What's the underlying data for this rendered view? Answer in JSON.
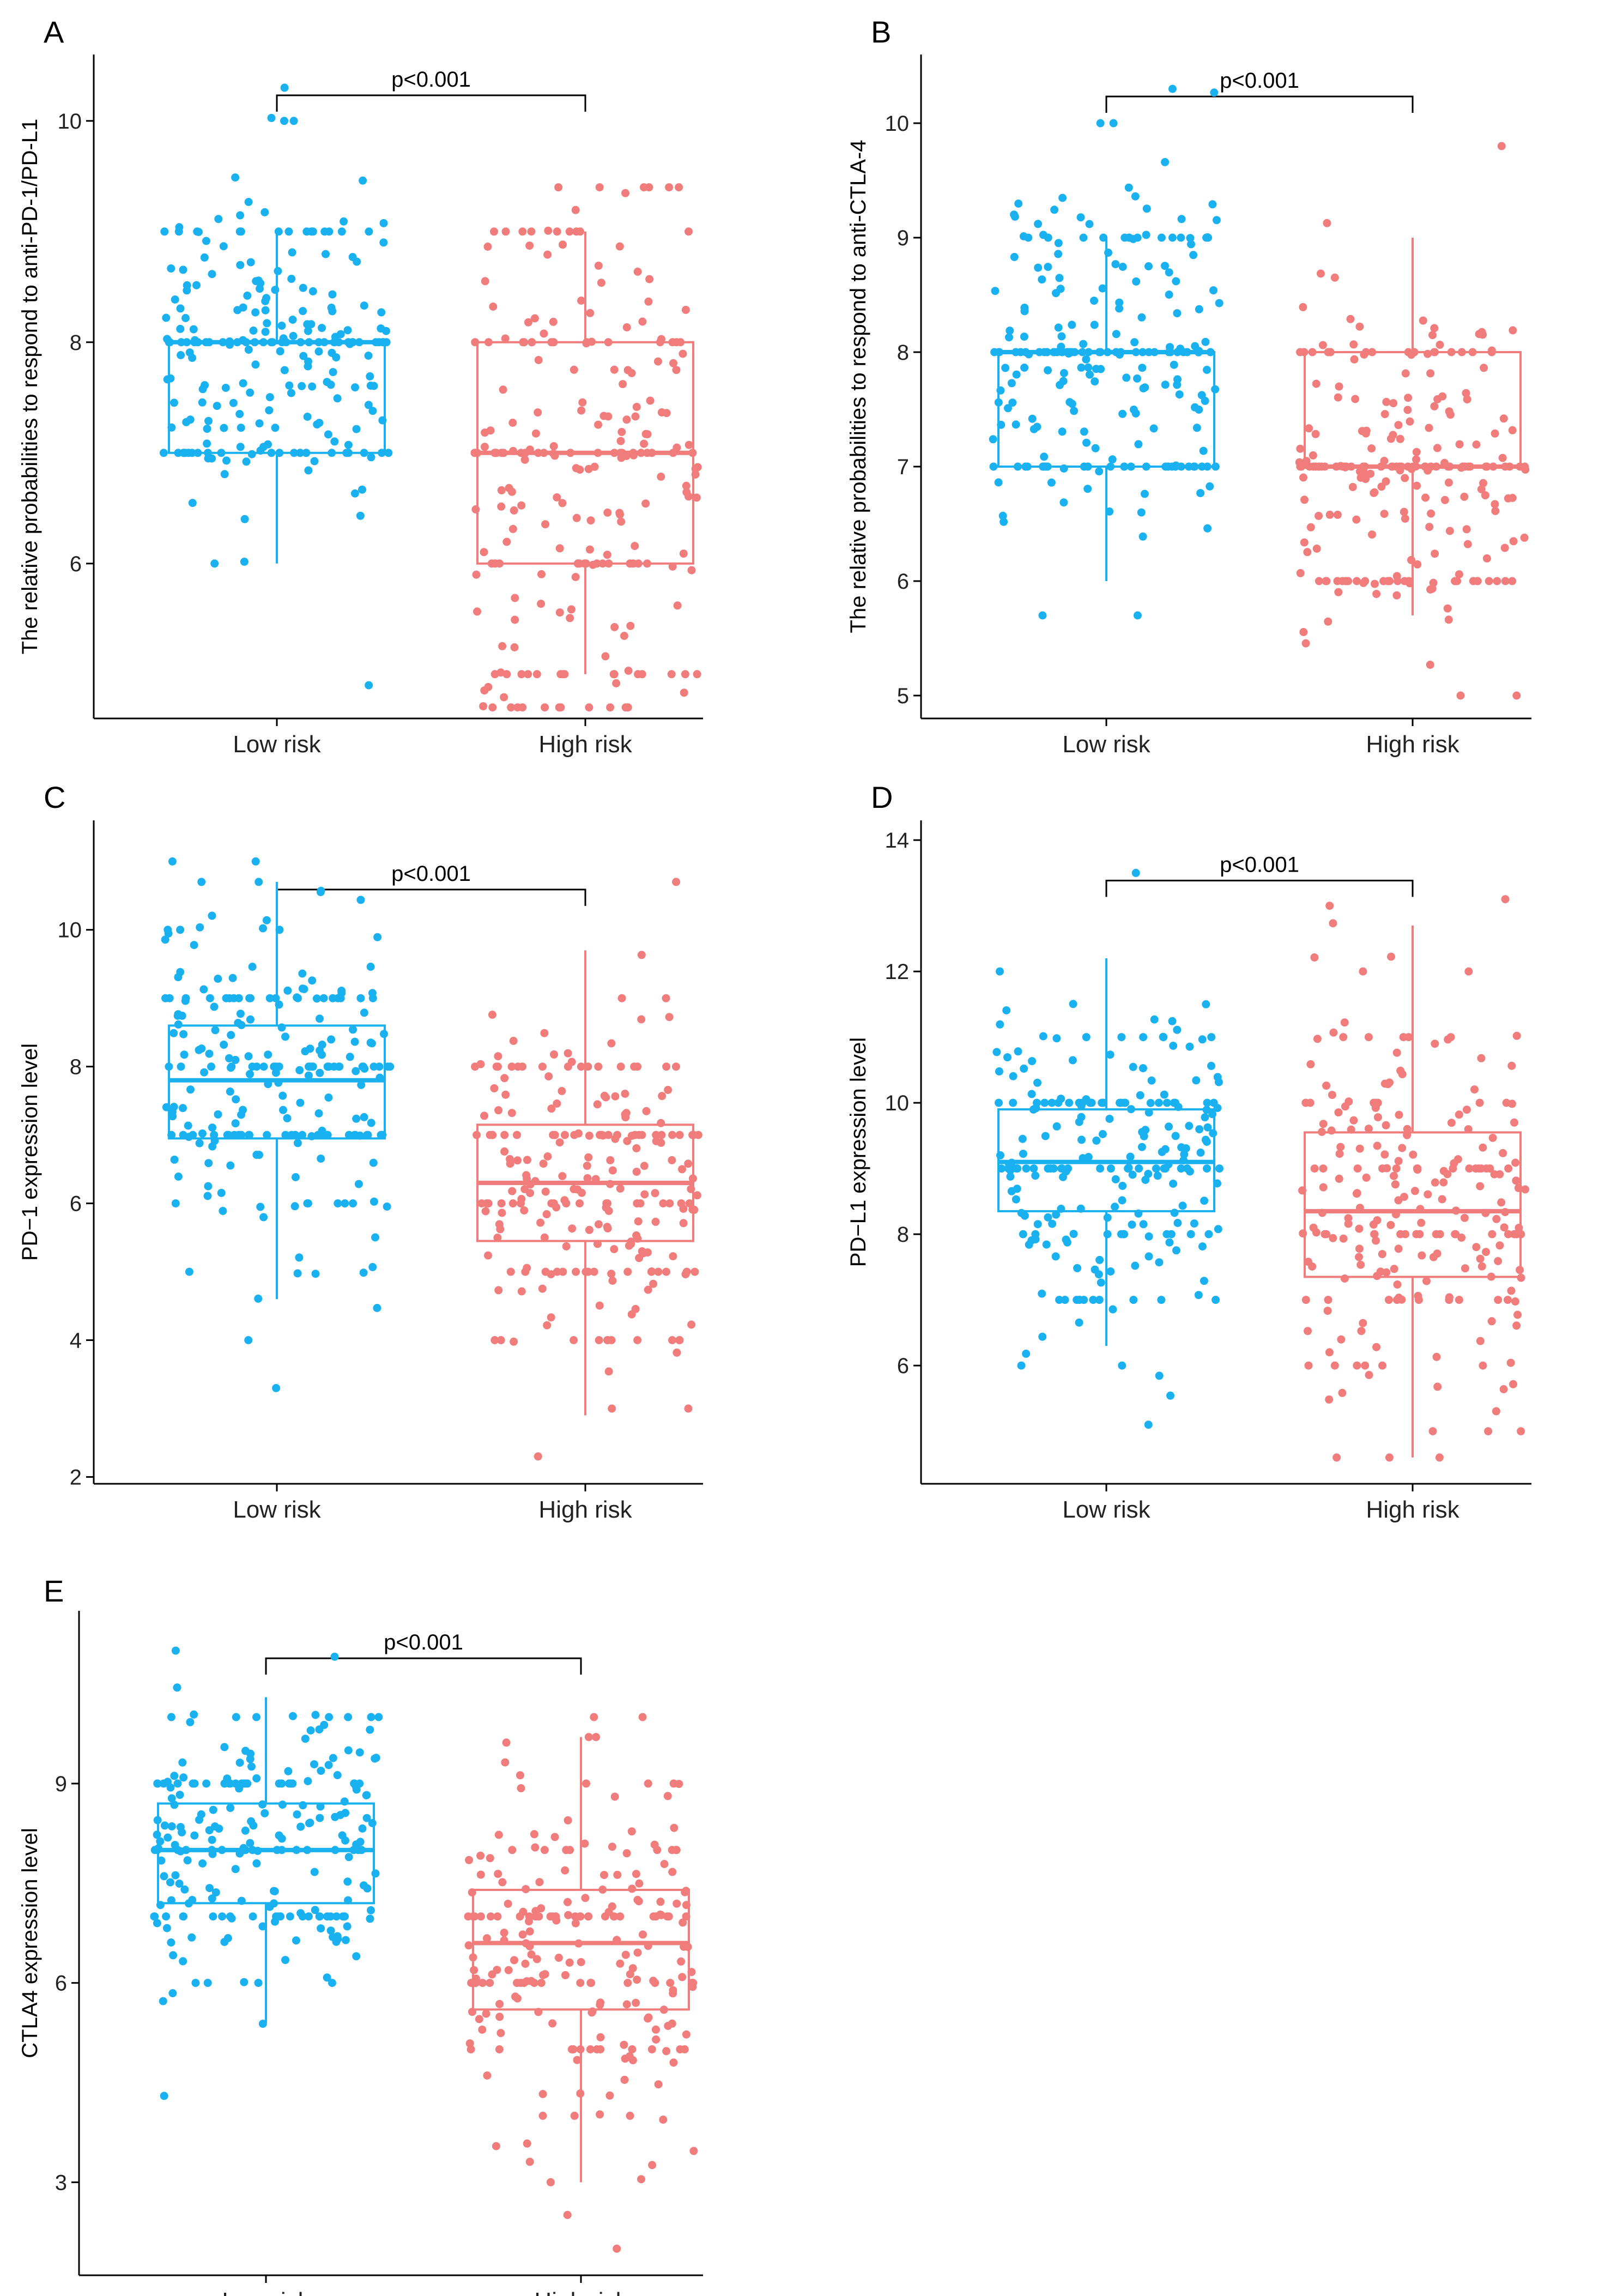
{
  "colors": {
    "low": "#1AB1F0",
    "high": "#F07C7B",
    "axis": "#000000"
  },
  "chart_data": [
    {
      "type": "box",
      "panel": "A",
      "ylabel": "The relative probabilities to respond to anti-PD-1/PD-L1",
      "categories": [
        "Low risk",
        "High risk"
      ],
      "ylim": [
        4.6,
        10.6
      ],
      "yticks": [
        6,
        8,
        10
      ],
      "pvalue": "p<0.001",
      "series": [
        {
          "name": "Low risk",
          "box": {
            "whisker_low": 6.0,
            "q1": 7.0,
            "median": 8.0,
            "q3": 8.0,
            "whisker_high": 9.0
          },
          "point_range": [
            4.9,
            10.3
          ],
          "n_points": 230
        },
        {
          "name": "High risk",
          "box": {
            "whisker_low": 5.0,
            "q1": 6.0,
            "median": 7.0,
            "q3": 8.0,
            "whisker_high": 9.0
          },
          "point_range": [
            4.7,
            9.4
          ],
          "n_points": 230
        }
      ]
    },
    {
      "type": "box",
      "panel": "B",
      "ylabel": "The relative probabilities to respond to anti-CTLA-4",
      "categories": [
        "Low risk",
        "High risk"
      ],
      "ylim": [
        4.8,
        10.6
      ],
      "yticks": [
        5,
        6,
        7,
        8,
        9,
        10
      ],
      "pvalue": "p<0.001",
      "series": [
        {
          "name": "Low risk",
          "box": {
            "whisker_low": 6.0,
            "q1": 7.0,
            "median": 8.0,
            "q3": 8.0,
            "whisker_high": 9.0
          },
          "point_range": [
            5.7,
            10.3
          ],
          "n_points": 230
        },
        {
          "name": "High risk",
          "box": {
            "whisker_low": 5.7,
            "q1": 7.0,
            "median": 7.0,
            "q3": 8.0,
            "whisker_high": 9.0
          },
          "point_range": [
            5.0,
            9.8
          ],
          "n_points": 230
        }
      ]
    },
    {
      "type": "box",
      "panel": "C",
      "ylabel": "PD−1 expression level",
      "categories": [
        "Low risk",
        "High risk"
      ],
      "ylim": [
        1.9,
        11.6
      ],
      "yticks": [
        2,
        4,
        6,
        8,
        10
      ],
      "pvalue": "p<0.001",
      "series": [
        {
          "name": "Low risk",
          "box": {
            "whisker_low": 4.6,
            "q1": 6.95,
            "median": 7.8,
            "q3": 8.6,
            "whisker_high": 10.7
          },
          "point_range": [
            3.3,
            10.7
          ],
          "n_points": 230
        },
        {
          "name": "High risk",
          "box": {
            "whisker_low": 2.9,
            "q1": 5.45,
            "median": 6.3,
            "q3": 7.15,
            "whisker_high": 9.7
          },
          "point_range": [
            2.3,
            10.7
          ],
          "n_points": 230
        }
      ]
    },
    {
      "type": "box",
      "panel": "D",
      "ylabel": "PD−L1 expression level",
      "categories": [
        "Low risk",
        "High risk"
      ],
      "ylim": [
        4.2,
        14.3
      ],
      "yticks": [
        6,
        8,
        10,
        12,
        14
      ],
      "pvalue": "p<0.001",
      "series": [
        {
          "name": "Low risk",
          "box": {
            "whisker_low": 6.3,
            "q1": 8.35,
            "median": 9.1,
            "q3": 9.9,
            "whisker_high": 12.2
          },
          "point_range": [
            5.1,
            13.5
          ],
          "n_points": 230
        },
        {
          "name": "High risk",
          "box": {
            "whisker_low": 4.6,
            "q1": 7.35,
            "median": 8.35,
            "q3": 9.55,
            "whisker_high": 12.7
          },
          "point_range": [
            4.6,
            13.1
          ],
          "n_points": 230
        }
      ]
    },
    {
      "type": "box",
      "panel": "E",
      "ylabel": "CTLA4 expression level",
      "categories": [
        "Low risk",
        "High risk"
      ],
      "ylim": [
        1.6,
        11.6
      ],
      "yticks": [
        3,
        6,
        9
      ],
      "pvalue": "p<0.001",
      "series": [
        {
          "name": "Low risk",
          "box": {
            "whisker_low": 5.4,
            "q1": 7.2,
            "median": 8.0,
            "q3": 8.7,
            "whisker_high": 10.3
          },
          "point_range": [
            4.3,
            11.0
          ],
          "n_points": 230
        },
        {
          "name": "High risk",
          "box": {
            "whisker_low": 3.0,
            "q1": 5.6,
            "median": 6.6,
            "q3": 7.4,
            "whisker_high": 9.7
          },
          "point_range": [
            2.0,
            9.7
          ],
          "n_points": 230
        }
      ]
    }
  ]
}
